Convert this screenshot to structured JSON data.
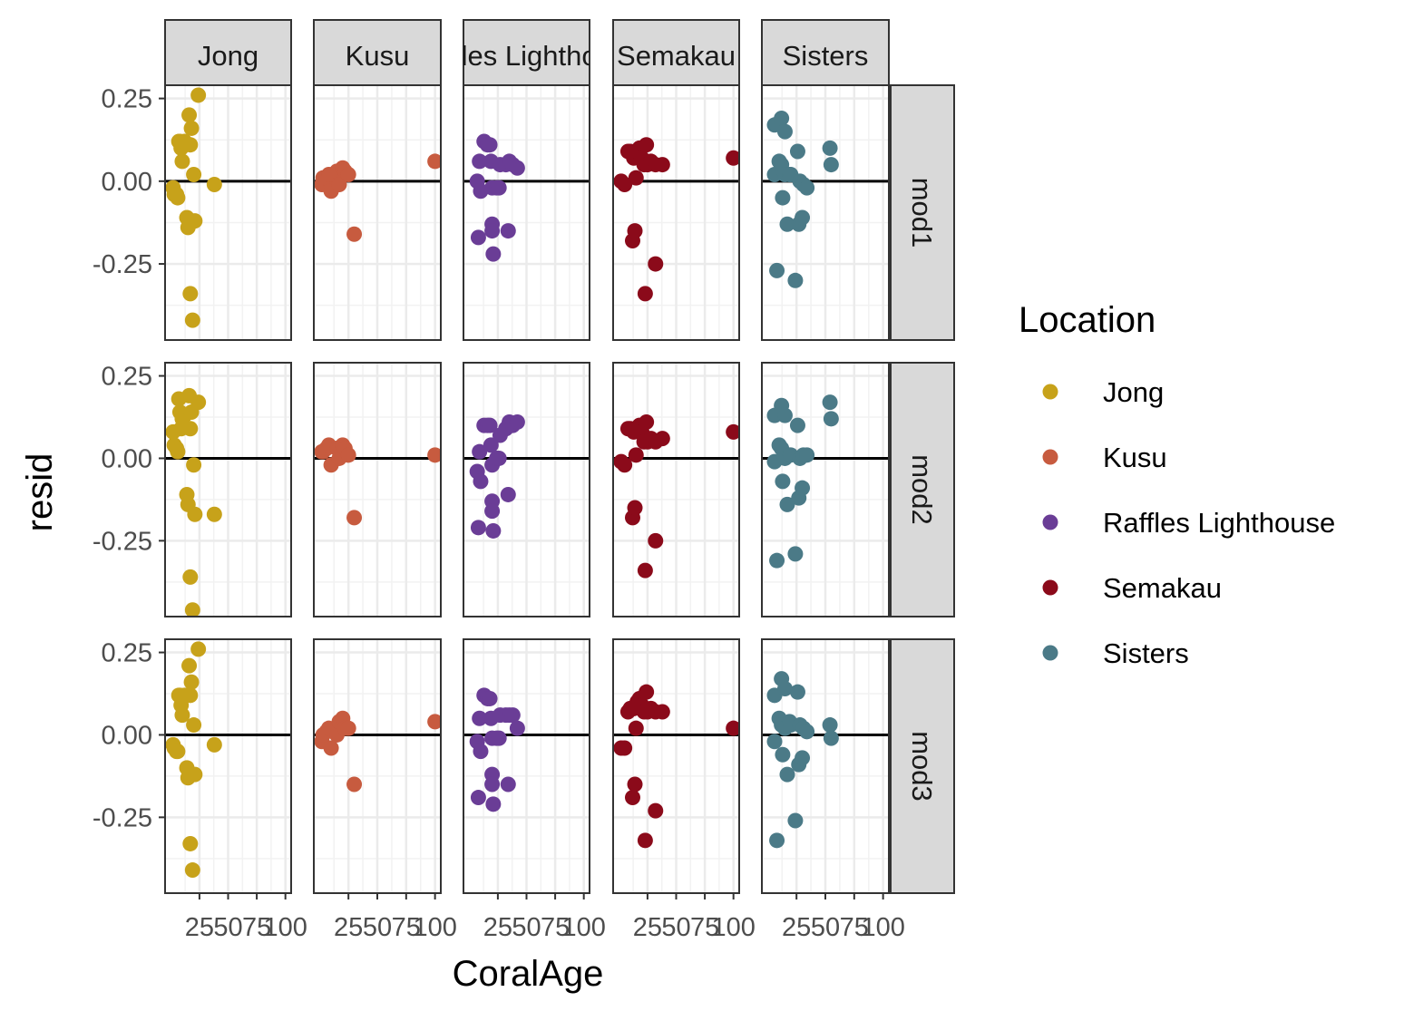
{
  "chart_data": {
    "type": "scatter",
    "layout": "facet_grid",
    "xlabel": "CoralAge",
    "ylabel": "resid",
    "column_facets": [
      "Jong",
      "Kusu",
      "Raffles Lighthouse",
      "Semakau",
      "Sisters"
    ],
    "row_facets": [
      "mod1",
      "mod2",
      "mod3"
    ],
    "xlim": [
      -5,
      105
    ],
    "x_ticks": [
      25,
      50,
      75,
      100
    ],
    "x_tick_labels": [
      "25",
      "50",
      "75",
      "100"
    ],
    "ylim": [
      -0.48,
      0.29
    ],
    "y_ticks": [
      0.25,
      0.0,
      -0.25
    ],
    "y_tick_labels": [
      "0.25",
      "0.00",
      "-0.25"
    ],
    "reference_line_y": 0,
    "grid": true,
    "legend": {
      "title": "Location",
      "position": "right",
      "entries": [
        {
          "label": "Jong",
          "color": "#C7A21A"
        },
        {
          "label": "Kusu",
          "color": "#C75B3F"
        },
        {
          "label": "Raffles Lighthouse",
          "color": "#6A3D96"
        },
        {
          "label": "Semakau",
          "color": "#8B0A1A"
        },
        {
          "label": "Sisters",
          "color": "#4B7A87"
        }
      ]
    },
    "panels": {
      "mod1": {
        "Jong": [
          [
            2,
            -0.02
          ],
          [
            3,
            -0.04
          ],
          [
            5,
            -0.04
          ],
          [
            6,
            -0.05
          ],
          [
            7,
            0.12
          ],
          [
            8,
            0.12
          ],
          [
            9,
            0.1
          ],
          [
            10,
            0.06
          ],
          [
            12,
            0.12
          ],
          [
            14,
            -0.11
          ],
          [
            15,
            -0.14
          ],
          [
            16,
            0.2
          ],
          [
            17,
            0.11
          ],
          [
            17,
            -0.34
          ],
          [
            18,
            0.16
          ],
          [
            19,
            -0.42
          ],
          [
            20,
            0.02
          ],
          [
            21,
            -0.12
          ],
          [
            24,
            0.26
          ],
          [
            38,
            -0.01
          ]
        ],
        "Kusu": [
          [
            2,
            -0.01
          ],
          [
            3,
            0.01
          ],
          [
            6,
            0.01
          ],
          [
            8,
            0.02
          ],
          [
            10,
            -0.03
          ],
          [
            15,
            0.03
          ],
          [
            17,
            -0.01
          ],
          [
            20,
            0.04
          ],
          [
            22,
            0.03
          ],
          [
            25,
            0.02
          ],
          [
            30,
            -0.16
          ],
          [
            100,
            0.06
          ]
        ],
        "Raffles Lighthouse": [
          [
            7,
            0.0
          ],
          [
            8,
            -0.17
          ],
          [
            9,
            0.06
          ],
          [
            10,
            -0.03
          ],
          [
            13,
            0.12
          ],
          [
            16,
            0.11
          ],
          [
            18,
            0.11
          ],
          [
            19,
            0.06
          ],
          [
            20,
            -0.02
          ],
          [
            20,
            -0.13
          ],
          [
            20,
            -0.15
          ],
          [
            21,
            -0.22
          ],
          [
            24,
            -0.02
          ],
          [
            26,
            -0.02
          ],
          [
            27,
            0.05
          ],
          [
            32,
            0.05
          ],
          [
            34,
            -0.15
          ],
          [
            35,
            0.06
          ],
          [
            38,
            0.05
          ],
          [
            42,
            0.04
          ]
        ],
        "Semakau": [
          [
            2,
            0.0
          ],
          [
            5,
            -0.01
          ],
          [
            8,
            0.09
          ],
          [
            10,
            0.09
          ],
          [
            12,
            -0.18
          ],
          [
            13,
            0.07
          ],
          [
            14,
            -0.15
          ],
          [
            15,
            0.01
          ],
          [
            16,
            0.09
          ],
          [
            18,
            0.1
          ],
          [
            20,
            0.07
          ],
          [
            22,
            0.05
          ],
          [
            23,
            -0.34
          ],
          [
            24,
            0.11
          ],
          [
            25,
            0.05
          ],
          [
            28,
            0.06
          ],
          [
            32,
            0.05
          ],
          [
            32,
            -0.25
          ],
          [
            38,
            0.05
          ],
          [
            100,
            0.07
          ]
        ],
        "Sisters": [
          [
            6,
            0.17
          ],
          [
            6,
            0.02
          ],
          [
            8,
            -0.27
          ],
          [
            10,
            0.06
          ],
          [
            12,
            0.19
          ],
          [
            12,
            0.05
          ],
          [
            13,
            -0.05
          ],
          [
            15,
            0.15
          ],
          [
            15,
            0.02
          ],
          [
            17,
            -0.13
          ],
          [
            19,
            0.02
          ],
          [
            20,
            0.02
          ],
          [
            24,
            -0.3
          ],
          [
            26,
            0.09
          ],
          [
            27,
            -0.13
          ],
          [
            28,
            0.0
          ],
          [
            30,
            -0.11
          ],
          [
            31,
            -0.01
          ],
          [
            34,
            -0.02
          ],
          [
            54,
            0.1
          ],
          [
            55,
            0.05
          ]
        ]
      },
      "mod2": {
        "Jong": [
          [
            2,
            0.08
          ],
          [
            3,
            0.04
          ],
          [
            5,
            0.03
          ],
          [
            6,
            0.02
          ],
          [
            7,
            0.18
          ],
          [
            8,
            0.14
          ],
          [
            9,
            0.09
          ],
          [
            10,
            0.12
          ],
          [
            12,
            0.13
          ],
          [
            14,
            -0.11
          ],
          [
            15,
            -0.14
          ],
          [
            16,
            0.19
          ],
          [
            17,
            0.09
          ],
          [
            17,
            -0.36
          ],
          [
            18,
            0.14
          ],
          [
            19,
            -0.46
          ],
          [
            20,
            -0.02
          ],
          [
            21,
            -0.17
          ],
          [
            24,
            0.17
          ],
          [
            38,
            -0.17
          ]
        ],
        "Kusu": [
          [
            2,
            0.02
          ],
          [
            3,
            0.02
          ],
          [
            6,
            0.03
          ],
          [
            8,
            0.04
          ],
          [
            10,
            -0.02
          ],
          [
            15,
            0.03
          ],
          [
            17,
            0.0
          ],
          [
            20,
            0.04
          ],
          [
            22,
            0.03
          ],
          [
            25,
            0.01
          ],
          [
            30,
            -0.18
          ],
          [
            100,
            0.01
          ]
        ],
        "Raffles Lighthouse": [
          [
            7,
            -0.04
          ],
          [
            8,
            -0.21
          ],
          [
            9,
            0.02
          ],
          [
            10,
            -0.07
          ],
          [
            13,
            0.1
          ],
          [
            16,
            0.1
          ],
          [
            18,
            0.1
          ],
          [
            19,
            0.04
          ],
          [
            20,
            -0.02
          ],
          [
            20,
            -0.13
          ],
          [
            20,
            -0.16
          ],
          [
            21,
            -0.22
          ],
          [
            24,
            0.0
          ],
          [
            26,
            0.0
          ],
          [
            27,
            0.07
          ],
          [
            32,
            0.09
          ],
          [
            34,
            -0.11
          ],
          [
            35,
            0.11
          ],
          [
            38,
            0.1
          ],
          [
            42,
            0.11
          ]
        ],
        "Semakau": [
          [
            2,
            -0.01
          ],
          [
            5,
            -0.02
          ],
          [
            8,
            0.09
          ],
          [
            10,
            0.09
          ],
          [
            12,
            -0.18
          ],
          [
            13,
            0.08
          ],
          [
            14,
            -0.15
          ],
          [
            15,
            0.01
          ],
          [
            16,
            0.09
          ],
          [
            18,
            0.1
          ],
          [
            20,
            0.08
          ],
          [
            22,
            0.05
          ],
          [
            23,
            -0.34
          ],
          [
            24,
            0.11
          ],
          [
            25,
            0.05
          ],
          [
            28,
            0.06
          ],
          [
            32,
            0.05
          ],
          [
            32,
            -0.25
          ],
          [
            38,
            0.06
          ],
          [
            100,
            0.08
          ]
        ],
        "Sisters": [
          [
            6,
            0.13
          ],
          [
            6,
            -0.01
          ],
          [
            8,
            -0.31
          ],
          [
            10,
            0.04
          ],
          [
            12,
            0.16
          ],
          [
            12,
            0.03
          ],
          [
            13,
            -0.07
          ],
          [
            15,
            0.13
          ],
          [
            15,
            0.0
          ],
          [
            17,
            -0.14
          ],
          [
            19,
            0.01
          ],
          [
            20,
            0.01
          ],
          [
            24,
            -0.29
          ],
          [
            26,
            0.1
          ],
          [
            27,
            -0.12
          ],
          [
            28,
            0.0
          ],
          [
            30,
            -0.09
          ],
          [
            31,
            0.01
          ],
          [
            34,
            0.01
          ],
          [
            54,
            0.17
          ],
          [
            55,
            0.12
          ]
        ]
      },
      "mod3": {
        "Jong": [
          [
            2,
            -0.03
          ],
          [
            3,
            -0.04
          ],
          [
            5,
            -0.05
          ],
          [
            6,
            -0.05
          ],
          [
            7,
            0.12
          ],
          [
            8,
            0.12
          ],
          [
            9,
            0.09
          ],
          [
            10,
            0.06
          ],
          [
            12,
            0.12
          ],
          [
            14,
            -0.1
          ],
          [
            15,
            -0.13
          ],
          [
            16,
            0.21
          ],
          [
            17,
            0.12
          ],
          [
            17,
            -0.33
          ],
          [
            18,
            0.16
          ],
          [
            19,
            -0.41
          ],
          [
            20,
            0.03
          ],
          [
            21,
            -0.12
          ],
          [
            24,
            0.26
          ],
          [
            38,
            -0.03
          ]
        ],
        "Kusu": [
          [
            2,
            -0.02
          ],
          [
            3,
            0.0
          ],
          [
            6,
            0.01
          ],
          [
            8,
            0.02
          ],
          [
            10,
            -0.04
          ],
          [
            15,
            0.0
          ],
          [
            17,
            0.04
          ],
          [
            20,
            0.05
          ],
          [
            22,
            0.02
          ],
          [
            25,
            0.02
          ],
          [
            30,
            -0.15
          ],
          [
            100,
            0.04
          ]
        ],
        "Raffles Lighthouse": [
          [
            7,
            -0.02
          ],
          [
            8,
            -0.19
          ],
          [
            9,
            0.05
          ],
          [
            10,
            -0.05
          ],
          [
            13,
            0.12
          ],
          [
            16,
            0.11
          ],
          [
            18,
            0.11
          ],
          [
            19,
            0.05
          ],
          [
            20,
            -0.01
          ],
          [
            20,
            -0.12
          ],
          [
            20,
            -0.15
          ],
          [
            21,
            -0.21
          ],
          [
            24,
            -0.01
          ],
          [
            26,
            -0.01
          ],
          [
            27,
            0.06
          ],
          [
            32,
            0.06
          ],
          [
            34,
            -0.15
          ],
          [
            35,
            0.06
          ],
          [
            38,
            0.06
          ],
          [
            42,
            0.02
          ]
        ],
        "Semakau": [
          [
            2,
            -0.04
          ],
          [
            5,
            -0.04
          ],
          [
            8,
            0.07
          ],
          [
            10,
            0.08
          ],
          [
            12,
            -0.19
          ],
          [
            13,
            0.08
          ],
          [
            14,
            -0.15
          ],
          [
            15,
            0.02
          ],
          [
            16,
            0.1
          ],
          [
            18,
            0.11
          ],
          [
            20,
            0.09
          ],
          [
            22,
            0.07
          ],
          [
            23,
            -0.32
          ],
          [
            24,
            0.13
          ],
          [
            25,
            0.07
          ],
          [
            28,
            0.08
          ],
          [
            32,
            0.07
          ],
          [
            32,
            -0.23
          ],
          [
            38,
            0.07
          ],
          [
            100,
            0.02
          ]
        ],
        "Sisters": [
          [
            6,
            0.12
          ],
          [
            6,
            -0.02
          ],
          [
            8,
            -0.32
          ],
          [
            10,
            0.05
          ],
          [
            12,
            0.17
          ],
          [
            12,
            0.03
          ],
          [
            13,
            -0.06
          ],
          [
            15,
            0.14
          ],
          [
            15,
            0.02
          ],
          [
            17,
            -0.12
          ],
          [
            19,
            0.04
          ],
          [
            20,
            0.03
          ],
          [
            24,
            -0.26
          ],
          [
            26,
            0.13
          ],
          [
            27,
            -0.09
          ],
          [
            28,
            0.03
          ],
          [
            30,
            -0.07
          ],
          [
            31,
            0.02
          ],
          [
            34,
            0.01
          ],
          [
            54,
            0.03
          ],
          [
            55,
            -0.01
          ]
        ]
      }
    }
  }
}
